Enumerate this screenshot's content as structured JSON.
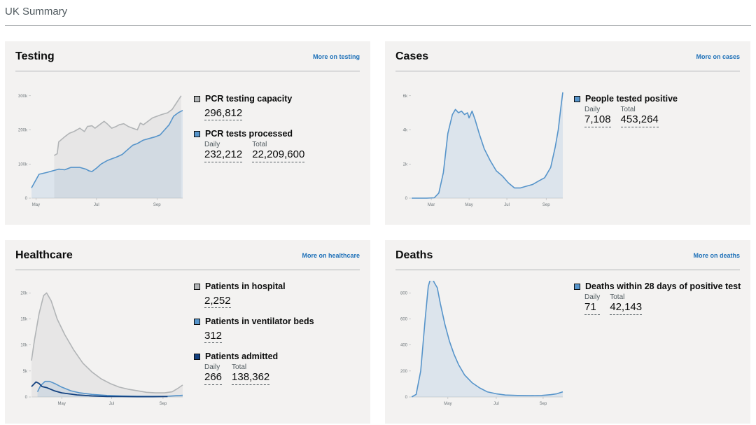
{
  "page": {
    "title": "UK Summary"
  },
  "colors": {
    "grey": "#b1b4b6",
    "blue": "#5694ca",
    "navy": "#12407f",
    "link": "#1d70b8",
    "card_bg": "#f3f2f1"
  },
  "testing": {
    "title": "Testing",
    "link": "More on testing",
    "metrics": [
      {
        "label": "PCR testing capacity",
        "value": "296,812",
        "swatch": "#b1b4b6"
      },
      {
        "label": "PCR tests processed",
        "daily_label": "Daily",
        "daily": "232,212",
        "total_label": "Total",
        "total": "22,209,600",
        "swatch": "#5694ca"
      }
    ]
  },
  "cases": {
    "title": "Cases",
    "link": "More on cases",
    "metrics": [
      {
        "label": "People tested positive",
        "daily_label": "Daily",
        "daily": "7,108",
        "total_label": "Total",
        "total": "453,264",
        "swatch": "#5694ca"
      }
    ]
  },
  "healthcare": {
    "title": "Healthcare",
    "link": "More on healthcare",
    "metrics": [
      {
        "label": "Patients in hospital",
        "value": "2,252",
        "swatch": "#b1b4b6"
      },
      {
        "label": "Patients in ventilator beds",
        "value": "312",
        "swatch": "#5694ca"
      },
      {
        "label": "Patients admitted",
        "daily_label": "Daily",
        "daily": "266",
        "total_label": "Total",
        "total": "138,362",
        "swatch": "#12407f"
      }
    ]
  },
  "deaths": {
    "title": "Deaths",
    "link": "More on deaths",
    "metrics": [
      {
        "label": "Deaths within 28 days of positive test",
        "daily_label": "Daily",
        "daily": "71",
        "total_label": "Total",
        "total": "42,143",
        "swatch": "#5694ca"
      }
    ]
  },
  "chart_data": [
    {
      "id": "testing",
      "type": "area",
      "y_ticks": [
        "0",
        "100k",
        "200k",
        "300k"
      ],
      "ylim": [
        0,
        310000
      ],
      "x_ticks": [
        {
          "label": "May",
          "x": 0.03
        },
        {
          "label": "Jul",
          "x": 0.43
        },
        {
          "label": "Sep",
          "x": 0.83
        }
      ],
      "series": [
        {
          "name": "PCR testing capacity",
          "color": "#b1b4b6",
          "fill": true,
          "points": [
            [
              0.15,
              125000
            ],
            [
              0.17,
              130000
            ],
            [
              0.18,
              165000
            ],
            [
              0.22,
              180000
            ],
            [
              0.25,
              190000
            ],
            [
              0.28,
              195000
            ],
            [
              0.3,
              200000
            ],
            [
              0.32,
              205000
            ],
            [
              0.35,
              195000
            ],
            [
              0.37,
              210000
            ],
            [
              0.4,
              212000
            ],
            [
              0.42,
              205000
            ],
            [
              0.45,
              215000
            ],
            [
              0.48,
              225000
            ],
            [
              0.5,
              218000
            ],
            [
              0.53,
              205000
            ],
            [
              0.56,
              210000
            ],
            [
              0.58,
              215000
            ],
            [
              0.61,
              218000
            ],
            [
              0.64,
              210000
            ],
            [
              0.67,
              205000
            ],
            [
              0.7,
              200000
            ],
            [
              0.72,
              220000
            ],
            [
              0.74,
              215000
            ],
            [
              0.77,
              225000
            ],
            [
              0.8,
              235000
            ],
            [
              0.83,
              240000
            ],
            [
              0.86,
              245000
            ],
            [
              0.9,
              250000
            ],
            [
              0.93,
              260000
            ],
            [
              0.96,
              280000
            ],
            [
              0.99,
              300000
            ]
          ]
        },
        {
          "name": "PCR tests processed",
          "color": "#5694ca",
          "fill": true,
          "points": [
            [
              0.0,
              30000
            ],
            [
              0.05,
              70000
            ],
            [
              0.1,
              75000
            ],
            [
              0.14,
              80000
            ],
            [
              0.18,
              85000
            ],
            [
              0.22,
              83000
            ],
            [
              0.26,
              90000
            ],
            [
              0.32,
              90000
            ],
            [
              0.36,
              85000
            ],
            [
              0.38,
              80000
            ],
            [
              0.4,
              78000
            ],
            [
              0.43,
              88000
            ],
            [
              0.46,
              100000
            ],
            [
              0.5,
              110000
            ],
            [
              0.53,
              115000
            ],
            [
              0.56,
              120000
            ],
            [
              0.6,
              128000
            ],
            [
              0.63,
              140000
            ],
            [
              0.67,
              155000
            ],
            [
              0.7,
              160000
            ],
            [
              0.74,
              170000
            ],
            [
              0.78,
              175000
            ],
            [
              0.82,
              180000
            ],
            [
              0.85,
              185000
            ],
            [
              0.88,
              200000
            ],
            [
              0.91,
              215000
            ],
            [
              0.94,
              240000
            ],
            [
              0.97,
              250000
            ],
            [
              1.0,
              257000
            ]
          ]
        }
      ]
    },
    {
      "id": "cases",
      "type": "area",
      "y_ticks": [
        "0",
        "2k",
        "4k",
        "6k"
      ],
      "ylim": [
        0,
        6200
      ],
      "x_ticks": [
        {
          "label": "Mar",
          "x": 0.13
        },
        {
          "label": "May",
          "x": 0.38
        },
        {
          "label": "Jul",
          "x": 0.63
        },
        {
          "label": "Sep",
          "x": 0.89
        }
      ],
      "series": [
        {
          "name": "People tested positive",
          "color": "#5694ca",
          "fill": true,
          "points": [
            [
              0.0,
              0
            ],
            [
              0.1,
              0
            ],
            [
              0.15,
              20
            ],
            [
              0.18,
              300
            ],
            [
              0.21,
              1500
            ],
            [
              0.24,
              3800
            ],
            [
              0.27,
              4900
            ],
            [
              0.29,
              5200
            ],
            [
              0.31,
              5000
            ],
            [
              0.33,
              5100
            ],
            [
              0.35,
              4900
            ],
            [
              0.37,
              5000
            ],
            [
              0.38,
              4700
            ],
            [
              0.4,
              5100
            ],
            [
              0.42,
              4600
            ],
            [
              0.45,
              3700
            ],
            [
              0.48,
              2900
            ],
            [
              0.52,
              2200
            ],
            [
              0.56,
              1600
            ],
            [
              0.6,
              1300
            ],
            [
              0.64,
              900
            ],
            [
              0.68,
              600
            ],
            [
              0.72,
              600
            ],
            [
              0.76,
              700
            ],
            [
              0.8,
              800
            ],
            [
              0.84,
              1000
            ],
            [
              0.88,
              1200
            ],
            [
              0.92,
              1800
            ],
            [
              0.95,
              3000
            ],
            [
              0.97,
              4000
            ],
            [
              0.99,
              5500
            ],
            [
              1.0,
              6200
            ]
          ]
        }
      ]
    },
    {
      "id": "healthcare",
      "type": "area",
      "y_ticks": [
        "0",
        "5k",
        "10k",
        "15k",
        "20k"
      ],
      "ylim": [
        0,
        21000
      ],
      "x_ticks": [
        {
          "label": "May",
          "x": 0.2
        },
        {
          "label": "Jul",
          "x": 0.53
        },
        {
          "label": "Sep",
          "x": 0.87
        }
      ],
      "series": [
        {
          "name": "Patients in hospital",
          "color": "#b1b4b6",
          "fill": true,
          "points": [
            [
              0.0,
              7000
            ],
            [
              0.02,
              11000
            ],
            [
              0.05,
              16000
            ],
            [
              0.08,
              19500
            ],
            [
              0.1,
              20000
            ],
            [
              0.13,
              18500
            ],
            [
              0.17,
              15000
            ],
            [
              0.22,
              12000
            ],
            [
              0.28,
              9000
            ],
            [
              0.34,
              6500
            ],
            [
              0.4,
              4800
            ],
            [
              0.46,
              3500
            ],
            [
              0.52,
              2600
            ],
            [
              0.58,
              1900
            ],
            [
              0.64,
              1500
            ],
            [
              0.7,
              1200
            ],
            [
              0.76,
              900
            ],
            [
              0.82,
              800
            ],
            [
              0.88,
              800
            ],
            [
              0.93,
              1000
            ],
            [
              0.97,
              1700
            ],
            [
              1.0,
              2300
            ]
          ]
        },
        {
          "name": "Patients in ventilator beds",
          "color": "#5694ca",
          "fill": true,
          "points": [
            [
              0.04,
              1000
            ],
            [
              0.06,
              2200
            ],
            [
              0.09,
              3000
            ],
            [
              0.12,
              3000
            ],
            [
              0.16,
              2500
            ],
            [
              0.2,
              1900
            ],
            [
              0.26,
              1200
            ],
            [
              0.32,
              800
            ],
            [
              0.4,
              500
            ],
            [
              0.5,
              300
            ],
            [
              0.6,
              200
            ],
            [
              0.7,
              150
            ],
            [
              0.8,
              120
            ],
            [
              0.9,
              150
            ],
            [
              0.96,
              250
            ],
            [
              1.0,
              320
            ]
          ]
        },
        {
          "name": "Patients admitted",
          "color": "#12407f",
          "fill": false,
          "points": [
            [
              0.0,
              2000
            ],
            [
              0.03,
              2900
            ],
            [
              0.05,
              2600
            ],
            [
              0.07,
              2000
            ],
            [
              0.1,
              1800
            ],
            [
              0.15,
              1200
            ],
            [
              0.2,
              800
            ],
            [
              0.3,
              400
            ],
            [
              0.4,
              200
            ],
            [
              0.5,
              100
            ],
            [
              0.6,
              80
            ],
            [
              0.7,
              60
            ],
            [
              0.8,
              60
            ],
            [
              0.9,
              80
            ]
          ]
        }
      ]
    },
    {
      "id": "deaths",
      "type": "area",
      "y_ticks": [
        "0",
        "200",
        "400",
        "600",
        "800"
      ],
      "ylim": [
        0,
        950
      ],
      "x_ticks": [
        {
          "label": "May",
          "x": 0.24
        },
        {
          "label": "Jul",
          "x": 0.56
        },
        {
          "label": "Sep",
          "x": 0.87
        }
      ],
      "series": [
        {
          "name": "Deaths within 28 days of positive test",
          "color": "#5694ca",
          "fill": true,
          "points": [
            [
              0.0,
              0
            ],
            [
              0.03,
              20
            ],
            [
              0.06,
              200
            ],
            [
              0.09,
              600
            ],
            [
              0.11,
              850
            ],
            [
              0.13,
              930
            ],
            [
              0.15,
              880
            ],
            [
              0.17,
              840
            ],
            [
              0.19,
              720
            ],
            [
              0.22,
              560
            ],
            [
              0.25,
              430
            ],
            [
              0.28,
              330
            ],
            [
              0.31,
              250
            ],
            [
              0.35,
              170
            ],
            [
              0.4,
              110
            ],
            [
              0.45,
              70
            ],
            [
              0.5,
              40
            ],
            [
              0.56,
              25
            ],
            [
              0.62,
              15
            ],
            [
              0.7,
              12
            ],
            [
              0.78,
              10
            ],
            [
              0.86,
              12
            ],
            [
              0.92,
              18
            ],
            [
              0.96,
              25
            ],
            [
              1.0,
              40
            ]
          ]
        }
      ]
    }
  ]
}
